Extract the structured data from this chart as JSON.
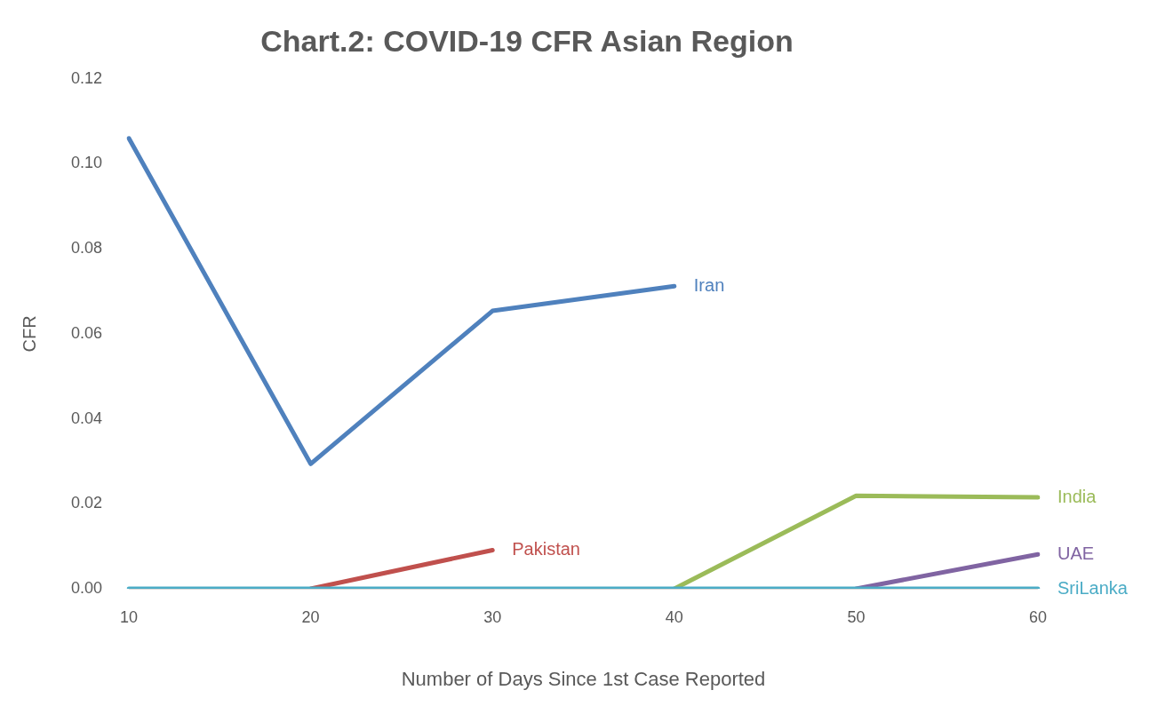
{
  "chart_data": {
    "type": "line",
    "title": "Chart.2: COVID-19 CFR Asian Region",
    "xlabel": "Number of Days Since 1st Case Reported",
    "ylabel": "CFR",
    "categories": [
      "10",
      "20",
      "30",
      "40",
      "50",
      "60"
    ],
    "series": [
      {
        "name": "Iran",
        "color": "#4f81bd",
        "values": [
          0.106,
          0.0294,
          0.0654,
          0.0712,
          null,
          null
        ]
      },
      {
        "name": "Pakistan",
        "color": "#c0504d",
        "values": [
          null,
          0,
          0.0091,
          null,
          null,
          null
        ]
      },
      {
        "name": "India",
        "color": "#9bbb59",
        "values": [
          null,
          null,
          null,
          0,
          0.0219,
          0.0215
        ]
      },
      {
        "name": "UAE",
        "color": "#8064a2",
        "values": [
          null,
          null,
          null,
          null,
          0,
          0.0081
        ]
      },
      {
        "name": "SriLanka",
        "color": "#4bacc6",
        "values": [
          0,
          0,
          0,
          0,
          0,
          0
        ]
      }
    ],
    "ylim": [
      0,
      0.12
    ],
    "yticks": [
      {
        "value": 0,
        "label": "0.00"
      },
      {
        "value": 0.02,
        "label": "0.02"
      },
      {
        "value": 0.04,
        "label": "0.04"
      },
      {
        "value": 0.06,
        "label": "0.06"
      },
      {
        "value": 0.08,
        "label": "0.08"
      },
      {
        "value": 0.1,
        "label": "0.10"
      },
      {
        "value": 0.12,
        "label": "0.12"
      }
    ],
    "grid": false,
    "legend": false,
    "marker": "none",
    "line_style": "solid"
  }
}
